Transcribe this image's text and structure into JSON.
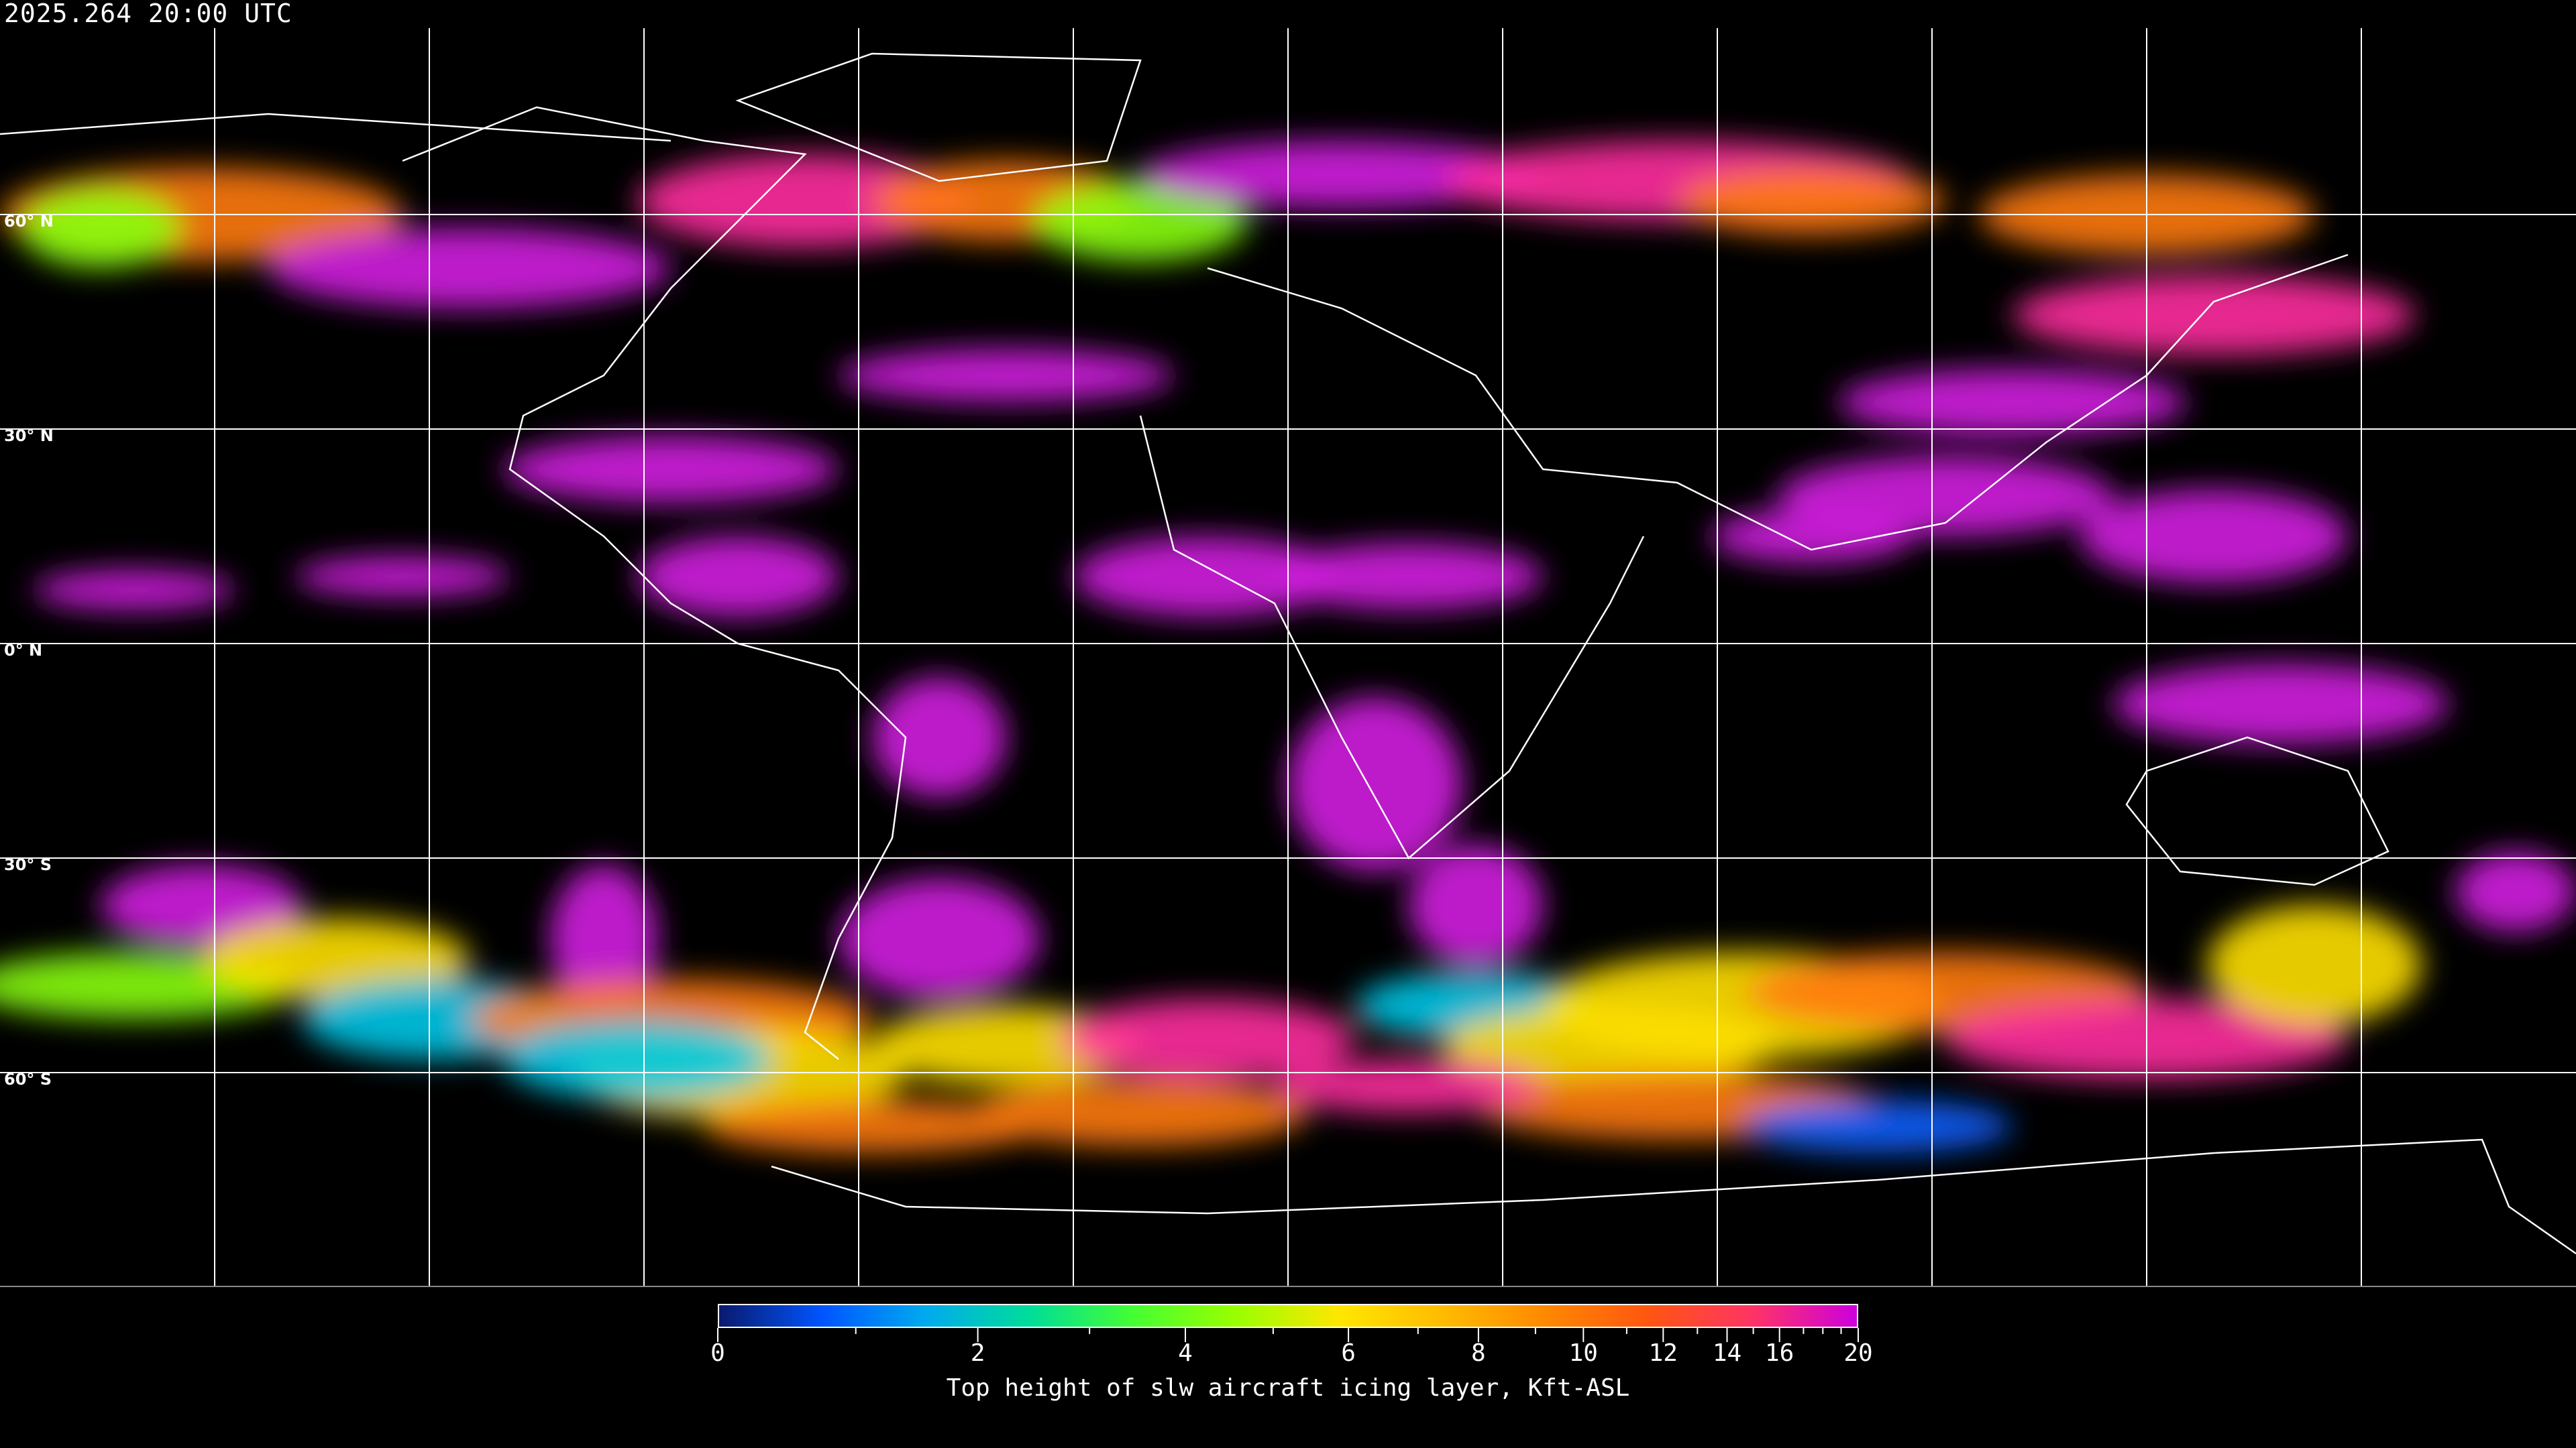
{
  "timestamp": "2025.264 20:00 UTC",
  "map": {
    "projection": "equirectangular",
    "grid_spacing_deg": 30,
    "latitude_labels": [
      "60° N",
      "30° N",
      "0° N",
      "30° S",
      "60° S"
    ],
    "coastlines_color": "#ffffff",
    "grid_color": "#ffffff",
    "background": "#000000"
  },
  "colorbar": {
    "label": "Top height of slw aircraft icing layer, Kft-ASL",
    "min": 0,
    "max": 20,
    "tick_labels": [
      "0",
      "2",
      "4",
      "6",
      "8",
      "10",
      "12",
      "14",
      "16",
      "20"
    ],
    "minor_ticks": [
      1,
      3,
      5,
      7,
      9,
      11,
      13,
      15,
      17,
      18,
      19
    ],
    "colors": [
      "#0a1a6e",
      "#0055ff",
      "#00aaee",
      "#00dd99",
      "#44ff33",
      "#99ff00",
      "#ffe600",
      "#ffbb00",
      "#ff8800",
      "#ff5511",
      "#ff3366",
      "#cc00dd"
    ]
  }
}
